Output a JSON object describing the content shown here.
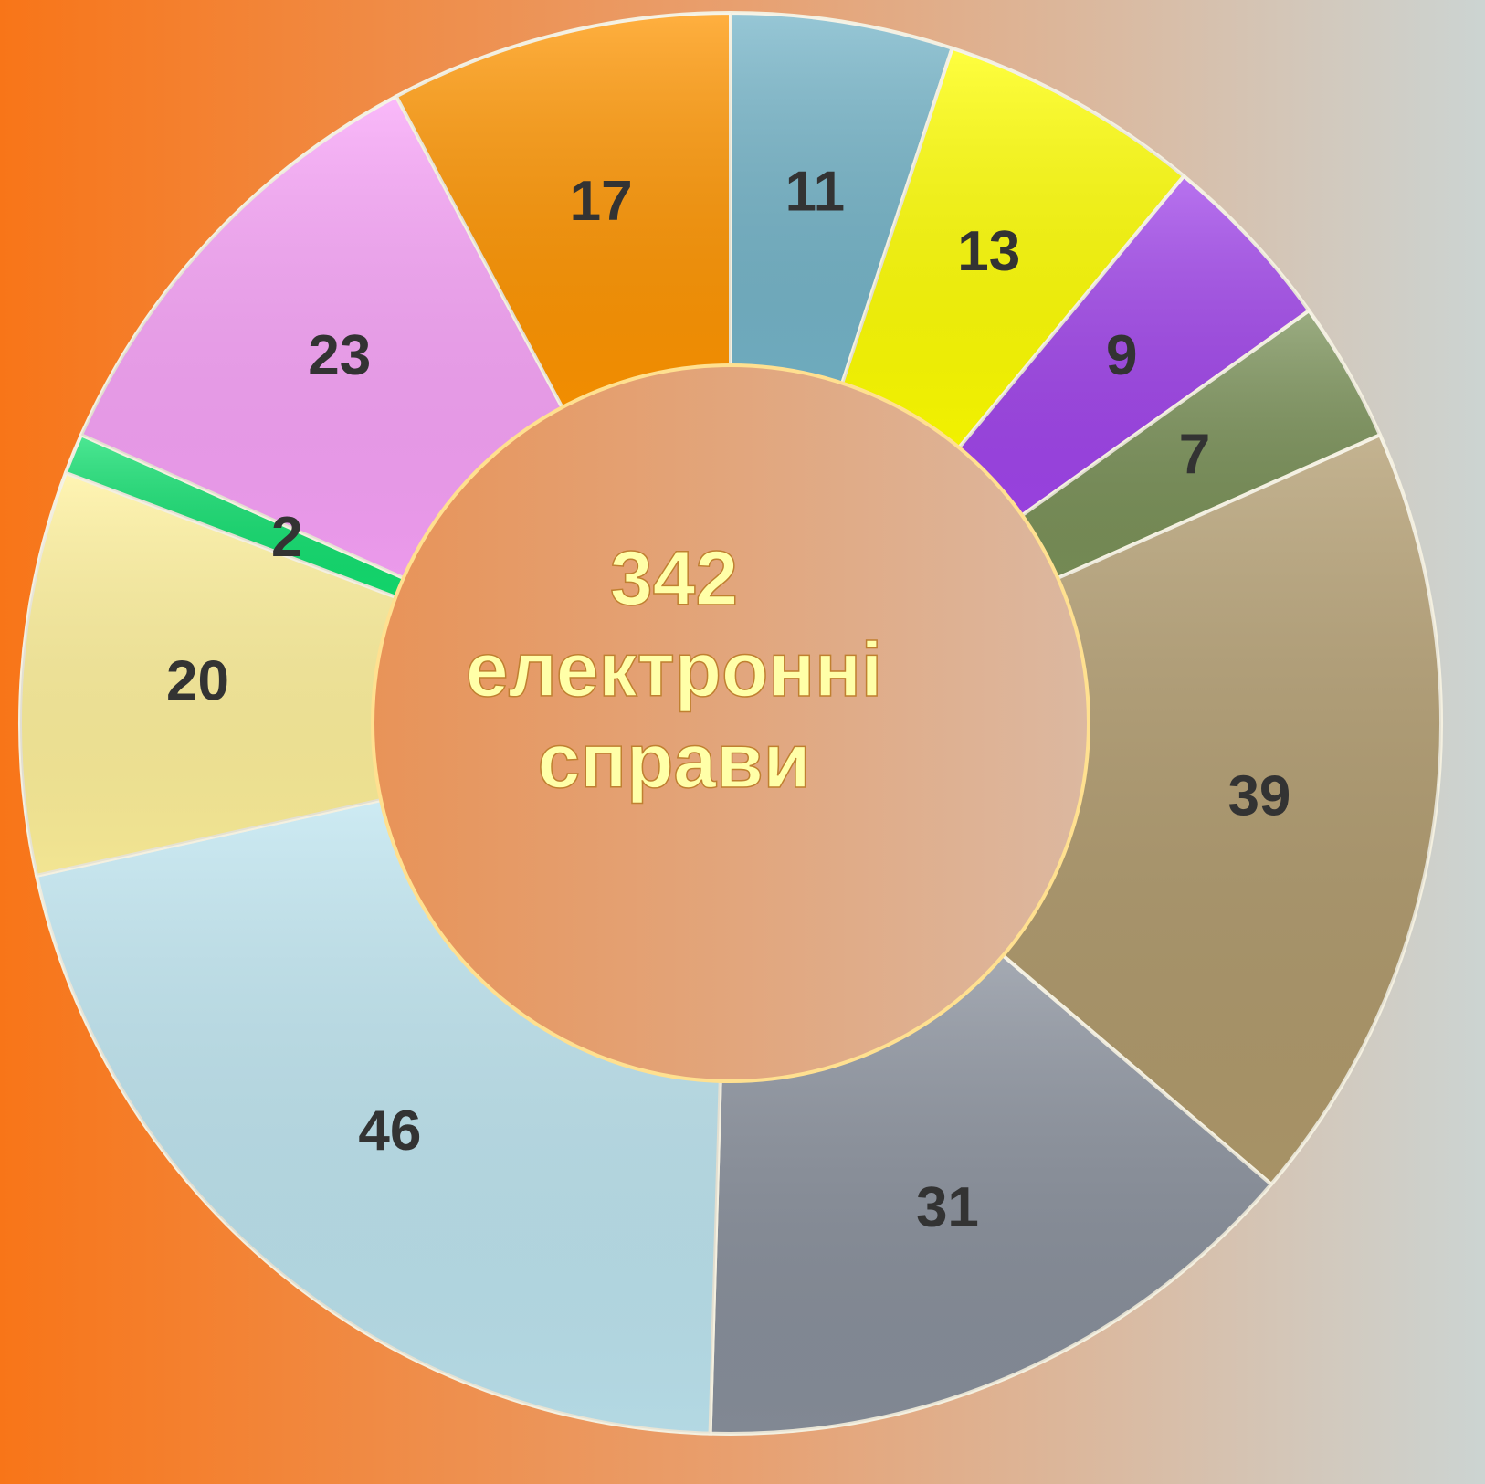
{
  "chart_data": {
    "type": "donut",
    "center_text": [
      "342",
      "електронні",
      "справи"
    ],
    "values": [
      11,
      13,
      9,
      7,
      39,
      31,
      46,
      20,
      2,
      23,
      17
    ],
    "colors": [
      "#74b4c8",
      "#ffff00",
      "#a044ea",
      "#7a9158",
      "#b09a6c",
      "#888f9b",
      "#bde4ef",
      "#fff19a",
      "#12e070",
      "#f8a2f8",
      "#ff9500"
    ]
  }
}
